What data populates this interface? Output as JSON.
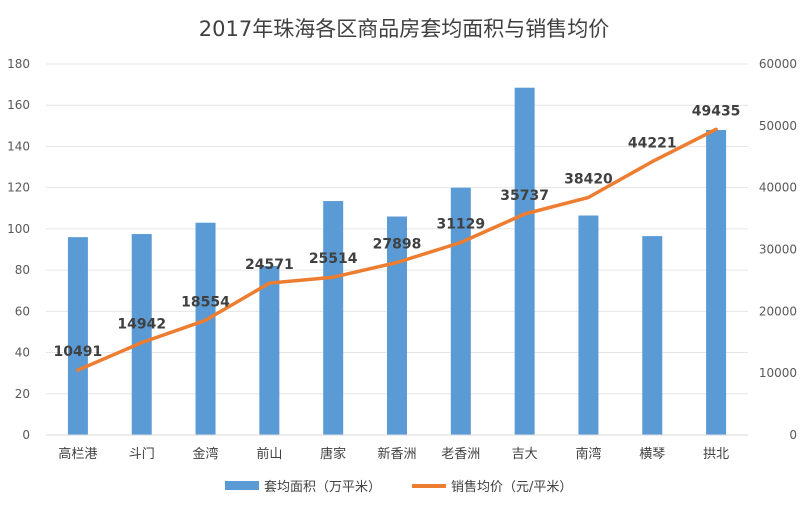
{
  "chart_data": {
    "type": "bar+line",
    "title": "2017年珠海各区商品房套均面积与销售均价",
    "categories": [
      "高栏港",
      "斗门",
      "金湾",
      "前山",
      "唐家",
      "新香洲",
      "老香洲",
      "吉大",
      "南湾",
      "横琴",
      "拱北"
    ],
    "series": [
      {
        "name": "套均面积（万平米）",
        "type": "bar",
        "axis": "left",
        "color": "#5b9bd5",
        "values": [
          96,
          97.5,
          103,
          82,
          113.5,
          106,
          120,
          168.5,
          106.5,
          96.5,
          148
        ]
      },
      {
        "name": "销售均价（元/平米）",
        "type": "line",
        "axis": "right",
        "color": "#ed7d31",
        "values": [
          10491,
          14942,
          18554,
          24571,
          25514,
          27898,
          31129,
          35737,
          38420,
          44221,
          49435
        ],
        "labels": [
          "10491",
          "14942",
          "18554",
          "24571",
          "25514",
          "27898",
          "31129",
          "35737",
          "38420",
          "44221",
          "49435"
        ]
      }
    ],
    "y_left": {
      "min": 0,
      "max": 180,
      "ticks": [
        0,
        20,
        40,
        60,
        80,
        100,
        120,
        140,
        160,
        180
      ],
      "tick_labels": [
        "0",
        "20",
        "40",
        "60",
        "80",
        "100",
        "120",
        "140",
        "160",
        "180"
      ]
    },
    "y_right": {
      "min": 0,
      "max": 60000,
      "ticks": [
        0,
        10000,
        20000,
        30000,
        40000,
        50000,
        60000
      ],
      "tick_labels": [
        "0",
        "10000",
        "20000",
        "30000",
        "40000",
        "50000",
        "60000"
      ]
    },
    "grid": true,
    "legend_position": "bottom",
    "axis_color": "#d9d9d9",
    "grid_color": "#e6e6e6"
  }
}
